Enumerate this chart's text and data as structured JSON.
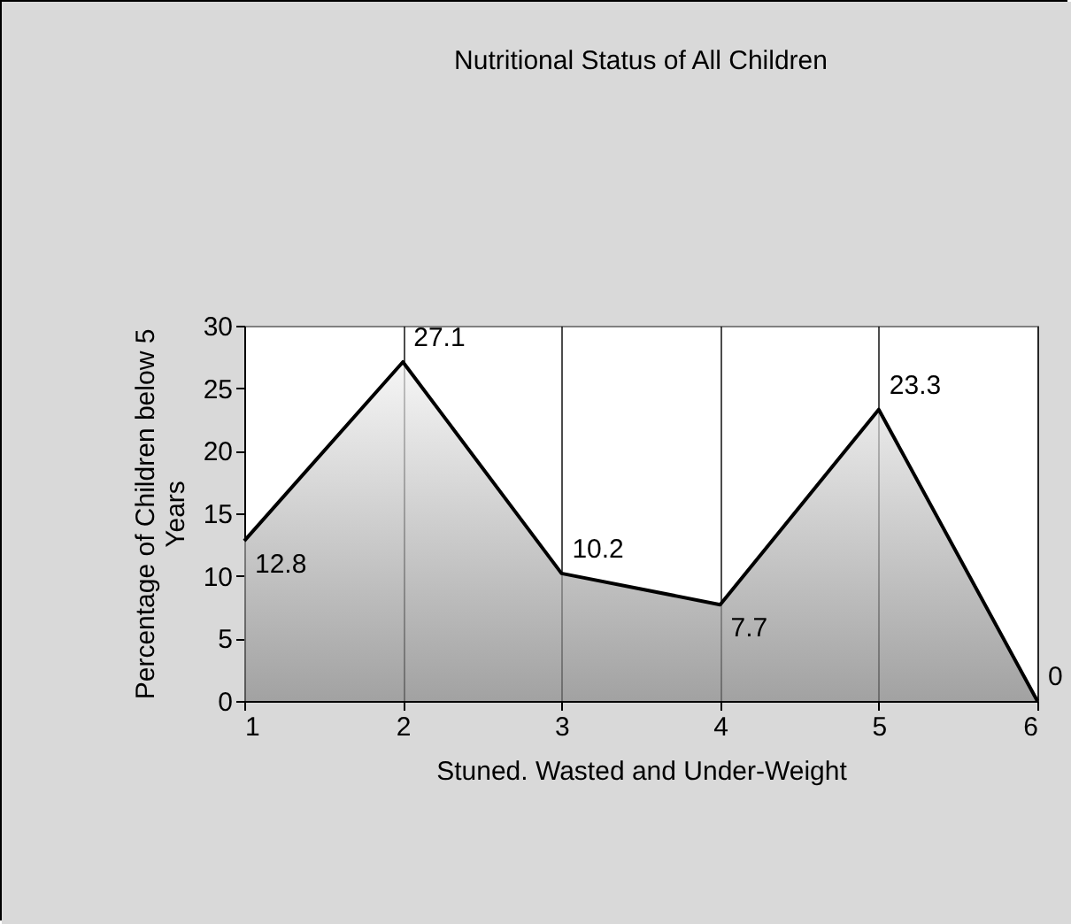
{
  "chart_data": {
    "type": "area",
    "title": "Nutritional Status of All Children",
    "xlabel": "Stuned. Wasted and Under-Weight",
    "ylabel": "Percentage of Children below 5 Years",
    "x": [
      1,
      2,
      3,
      4,
      5,
      6
    ],
    "series": [
      {
        "color": "#7a7a7a",
        "values": [
          12.8,
          27.1,
          10.2,
          7.7,
          23.3,
          0
        ]
      }
    ],
    "xlim": [
      1,
      6
    ],
    "xticks": [
      1,
      2,
      3,
      4,
      5,
      6
    ],
    "ylim": [
      0,
      30
    ],
    "yticks": [
      0,
      5,
      10,
      15,
      20,
      25,
      30
    ],
    "grid": "x",
    "data_labels": true
  }
}
